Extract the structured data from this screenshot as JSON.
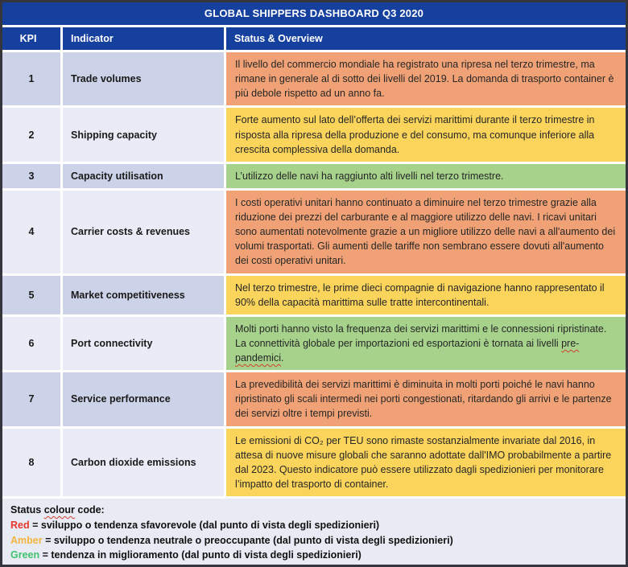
{
  "title": "GLOBAL SHIPPERS DASHBOARD Q3 2020",
  "columns": {
    "kpi": "KPI",
    "indicator": "Indicator",
    "status": "Status & Overview"
  },
  "colors": {
    "header_blue": "#16409e",
    "red": "#f0a276",
    "amber": "#fbd45c",
    "green": "#a6d28c",
    "legend_red": "#e8342b",
    "legend_amber": "#f4b53f",
    "legend_green": "#3ec36d"
  },
  "rows": [
    {
      "kpi": "1",
      "indicator": "Trade volumes",
      "status_color": "red",
      "segments": [
        {
          "text": "Il livello del commercio mondiale ha registrato una ripresa nel terzo trimestre, ma rimane in generale al di sotto dei livelli del 2019. La domanda di trasporto container è più debole rispetto ad un anno fa.",
          "wavy": false
        }
      ]
    },
    {
      "kpi": "2",
      "indicator": "Shipping capacity",
      "status_color": "amber",
      "segments": [
        {
          "text": "Forte aumento sul lato dell’offerta dei servizi marittimi durante il terzo trimestre in risposta alla ripresa della produzione e del consumo, ma comunque inferiore alla crescita complessiva della domanda.",
          "wavy": false
        }
      ]
    },
    {
      "kpi": "3",
      "indicator": "Capacity utilisation",
      "status_color": "green",
      "segments": [
        {
          "text": "L’utilizzo delle navi ha raggiunto alti livelli nel terzo trimestre.",
          "wavy": false
        }
      ]
    },
    {
      "kpi": "4",
      "indicator": "Carrier costs & revenues",
      "status_color": "red",
      "segments": [
        {
          "text": "I costi operativi unitari hanno continuato a diminuire nel terzo trimestre grazie alla riduzione dei prezzi del carburante e al maggiore utilizzo delle navi. I ricavi unitari sono aumentati notevolmente grazie a un migliore utilizzo delle navi a all'aumento dei volumi trasportati. Gli aumenti delle tariffe non sembrano essere dovuti all'aumento dei costi operativi unitari.",
          "wavy": false
        }
      ]
    },
    {
      "kpi": "5",
      "indicator": "Market competitiveness",
      "status_color": "amber",
      "segments": [
        {
          "text": "Nel terzo trimestre, le prime dieci compagnie di navigazione hanno rappresentato il 90% della capacità marittima sulle tratte intercontinentali.",
          "wavy": false
        }
      ]
    },
    {
      "kpi": "6",
      "indicator": "Port connectivity",
      "status_color": "green",
      "segments": [
        {
          "text": "Molti porti hanno visto la frequenza dei servizi marittimi e le connessioni ripristinate. La connettività globale per importazioni ed esportazioni è tornata ai livelli ",
          "wavy": false
        },
        {
          "text": "pre-pandemici",
          "wavy": true
        },
        {
          "text": ".",
          "wavy": false
        }
      ]
    },
    {
      "kpi": "7",
      "indicator": "Service performance",
      "status_color": "red",
      "segments": [
        {
          "text": "La prevedibilità dei servizi marittimi è diminuita in molti porti poiché le navi hanno ripristinato gli scali intermedi nei porti congestionati, ritardando gli arrivi e le partenze dei servizi oltre i tempi previsti.",
          "wavy": false
        }
      ]
    },
    {
      "kpi": "8",
      "indicator": "Carbon dioxide emissions",
      "status_color": "amber",
      "segments": [
        {
          "text": "Le emissioni di CO₂ per TEU sono rimaste sostanzialmente invariate dal 2016, in attesa di nuove misure globali che saranno adottate dall'IMO probabilmente a partire dal 2023. Questo indicatore può essere utilizzato dagli spedizionieri per monitorare l’impatto del trasporto di container.",
          "wavy": false
        }
      ]
    }
  ],
  "footer": {
    "heading": [
      {
        "text": "Status ",
        "wavy": false
      },
      {
        "text": "colour",
        "wavy": true
      },
      {
        "text": " code:",
        "wavy": false
      }
    ],
    "legend": [
      {
        "term": "Red",
        "color": "#e8342b",
        "text": " = sviluppo o tendenza sfavorevole (dal punto di vista degli spedizionieri)"
      },
      {
        "term": "Amber",
        "color": "#f4b53f",
        "text": " = sviluppo o tendenza neutrale o preoccupante (dal punto di vista degli spedizionieri)"
      },
      {
        "term": "Green",
        "color": "#3ec36d",
        "text": " = tendenza in miglioramento (dal punto di vista degli spedizionieri)"
      }
    ]
  }
}
